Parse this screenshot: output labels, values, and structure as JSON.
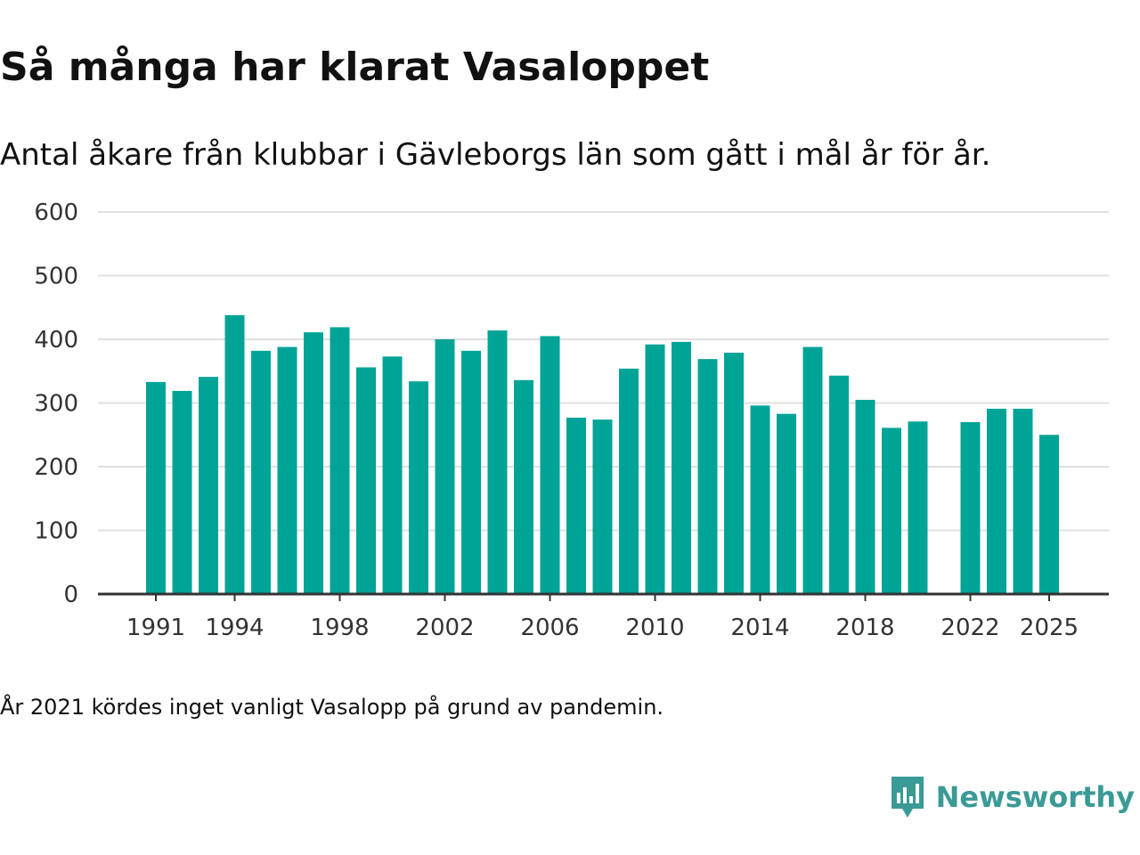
{
  "header": {
    "title": "Så många har klarat Vasaloppet",
    "subtitle": "Antal åkare från klubbar i Gävleborgs län som gått i mål år för år."
  },
  "footer": {
    "note": "År 2021 kördes inget vanligt Vasalopp på grund av pandemin.",
    "brand": "Newsworthy"
  },
  "colors": {
    "bar": "#00a497",
    "grid": "#e0e0e0",
    "axis": "#333333",
    "brand": "#3a9a96"
  },
  "chart_data": {
    "type": "bar",
    "title": "Så många har klarat Vasaloppet",
    "subtitle": "Antal åkare från klubbar i Gävleborgs län som gått i mål år för år.",
    "xlabel": "",
    "ylabel": "",
    "ylim": [
      0,
      600
    ],
    "yticks": [
      0,
      100,
      200,
      300,
      400,
      500,
      600
    ],
    "grid": true,
    "xtick_labels": [
      "1991",
      "1994",
      "1998",
      "2002",
      "2006",
      "2010",
      "2014",
      "2018",
      "2022",
      "2025"
    ],
    "categories": [
      "1991",
      "1992",
      "1993",
      "1994",
      "1995",
      "1996",
      "1997",
      "1998",
      "1999",
      "2000",
      "2001",
      "2002",
      "2003",
      "2004",
      "2005",
      "2006",
      "2007",
      "2008",
      "2009",
      "2010",
      "2011",
      "2012",
      "2013",
      "2014",
      "2015",
      "2016",
      "2017",
      "2018",
      "2019",
      "2020",
      "2021",
      "2022",
      "2023",
      "2024",
      "2025"
    ],
    "values": [
      333,
      319,
      341,
      438,
      382,
      388,
      411,
      419,
      356,
      373,
      334,
      400,
      382,
      414,
      336,
      405,
      277,
      274,
      354,
      392,
      396,
      369,
      379,
      296,
      283,
      388,
      343,
      305,
      261,
      271,
      null,
      270,
      291,
      291,
      250
    ]
  }
}
